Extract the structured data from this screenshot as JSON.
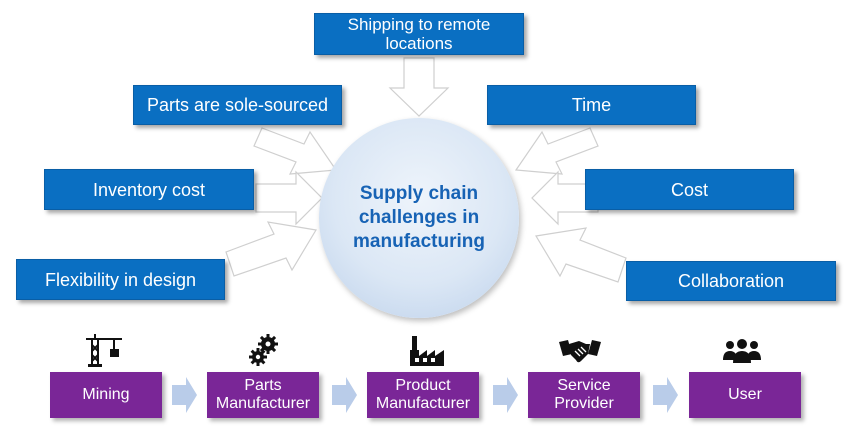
{
  "center": {
    "title": "Supply chain\nchallenges in\nmanufacturing"
  },
  "challenges": [
    {
      "label": "Shipping to remote\nlocations"
    },
    {
      "label": "Parts are sole-sourced"
    },
    {
      "label": "Time"
    },
    {
      "label": "Inventory cost"
    },
    {
      "label": "Cost"
    },
    {
      "label": "Flexibility in design"
    },
    {
      "label": "Collaboration"
    }
  ],
  "chain": [
    {
      "label": "Mining",
      "icon": "crane-icon"
    },
    {
      "label": "Parts\nManufacturer",
      "icon": "gears-icon"
    },
    {
      "label": "Product\nManufacturer",
      "icon": "factory-icon"
    },
    {
      "label": "Service\nProvider",
      "icon": "handshake-icon"
    },
    {
      "label": "User",
      "icon": "users-icon"
    }
  ],
  "colors": {
    "challenge_box": "#0a6fc2",
    "circle_text": "#1763b5",
    "chain_box": "#7a2697",
    "chain_arrow": "#b9cce9",
    "icon": "#111111"
  }
}
